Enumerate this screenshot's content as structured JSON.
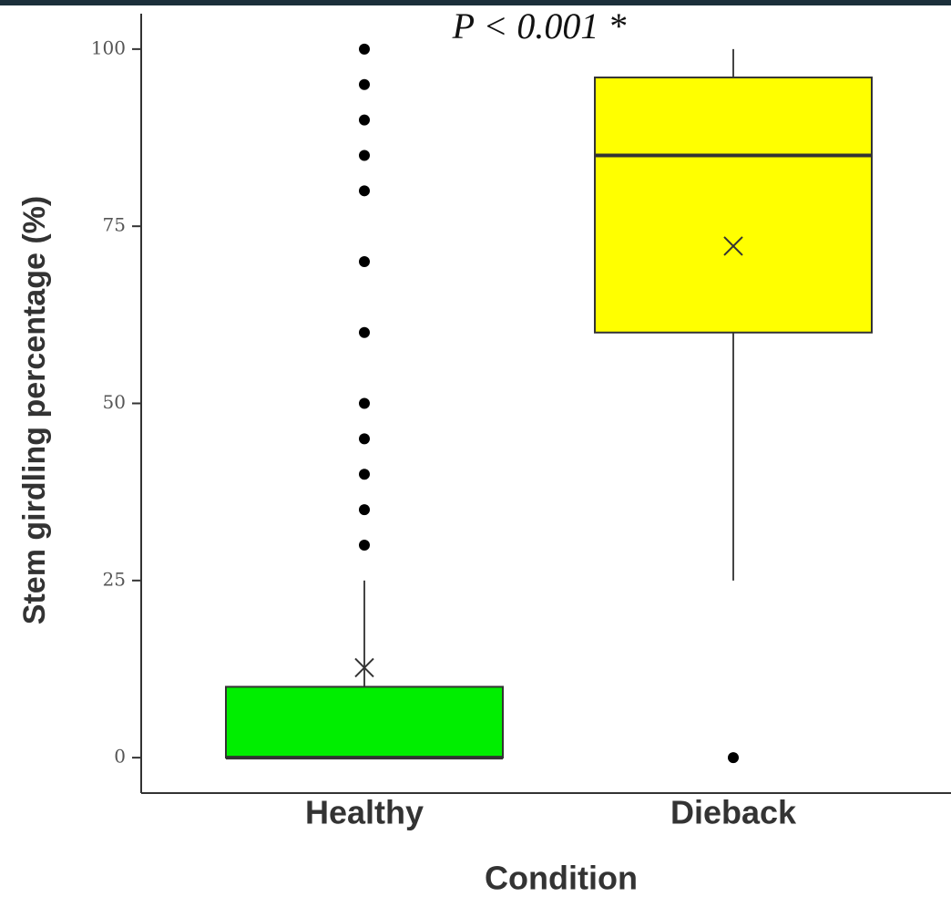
{
  "chart_data": {
    "type": "box",
    "annotation": "P < 0.001 *",
    "x_label": "Condition",
    "y_label": "Stem girdling percentage (%)",
    "categories": [
      "Healthy",
      "Dieback"
    ],
    "ylim": [
      -5,
      105
    ],
    "yticks": [
      0,
      25,
      50,
      75,
      100
    ],
    "boxes": [
      {
        "color": "#00ee00",
        "whislo": 0,
        "q1": 0,
        "median": 0,
        "q3": 10,
        "whishi": 25,
        "mean": 12.7,
        "fliers": [
          30,
          35,
          40,
          45,
          50,
          60,
          70,
          80,
          85,
          90,
          95,
          100
        ]
      },
      {
        "color": "#ffff00",
        "whislo": 25,
        "q1": 60,
        "median": 85,
        "q3": 96,
        "whishi": 100,
        "mean": 72.2,
        "fliers": [
          0
        ]
      }
    ]
  }
}
